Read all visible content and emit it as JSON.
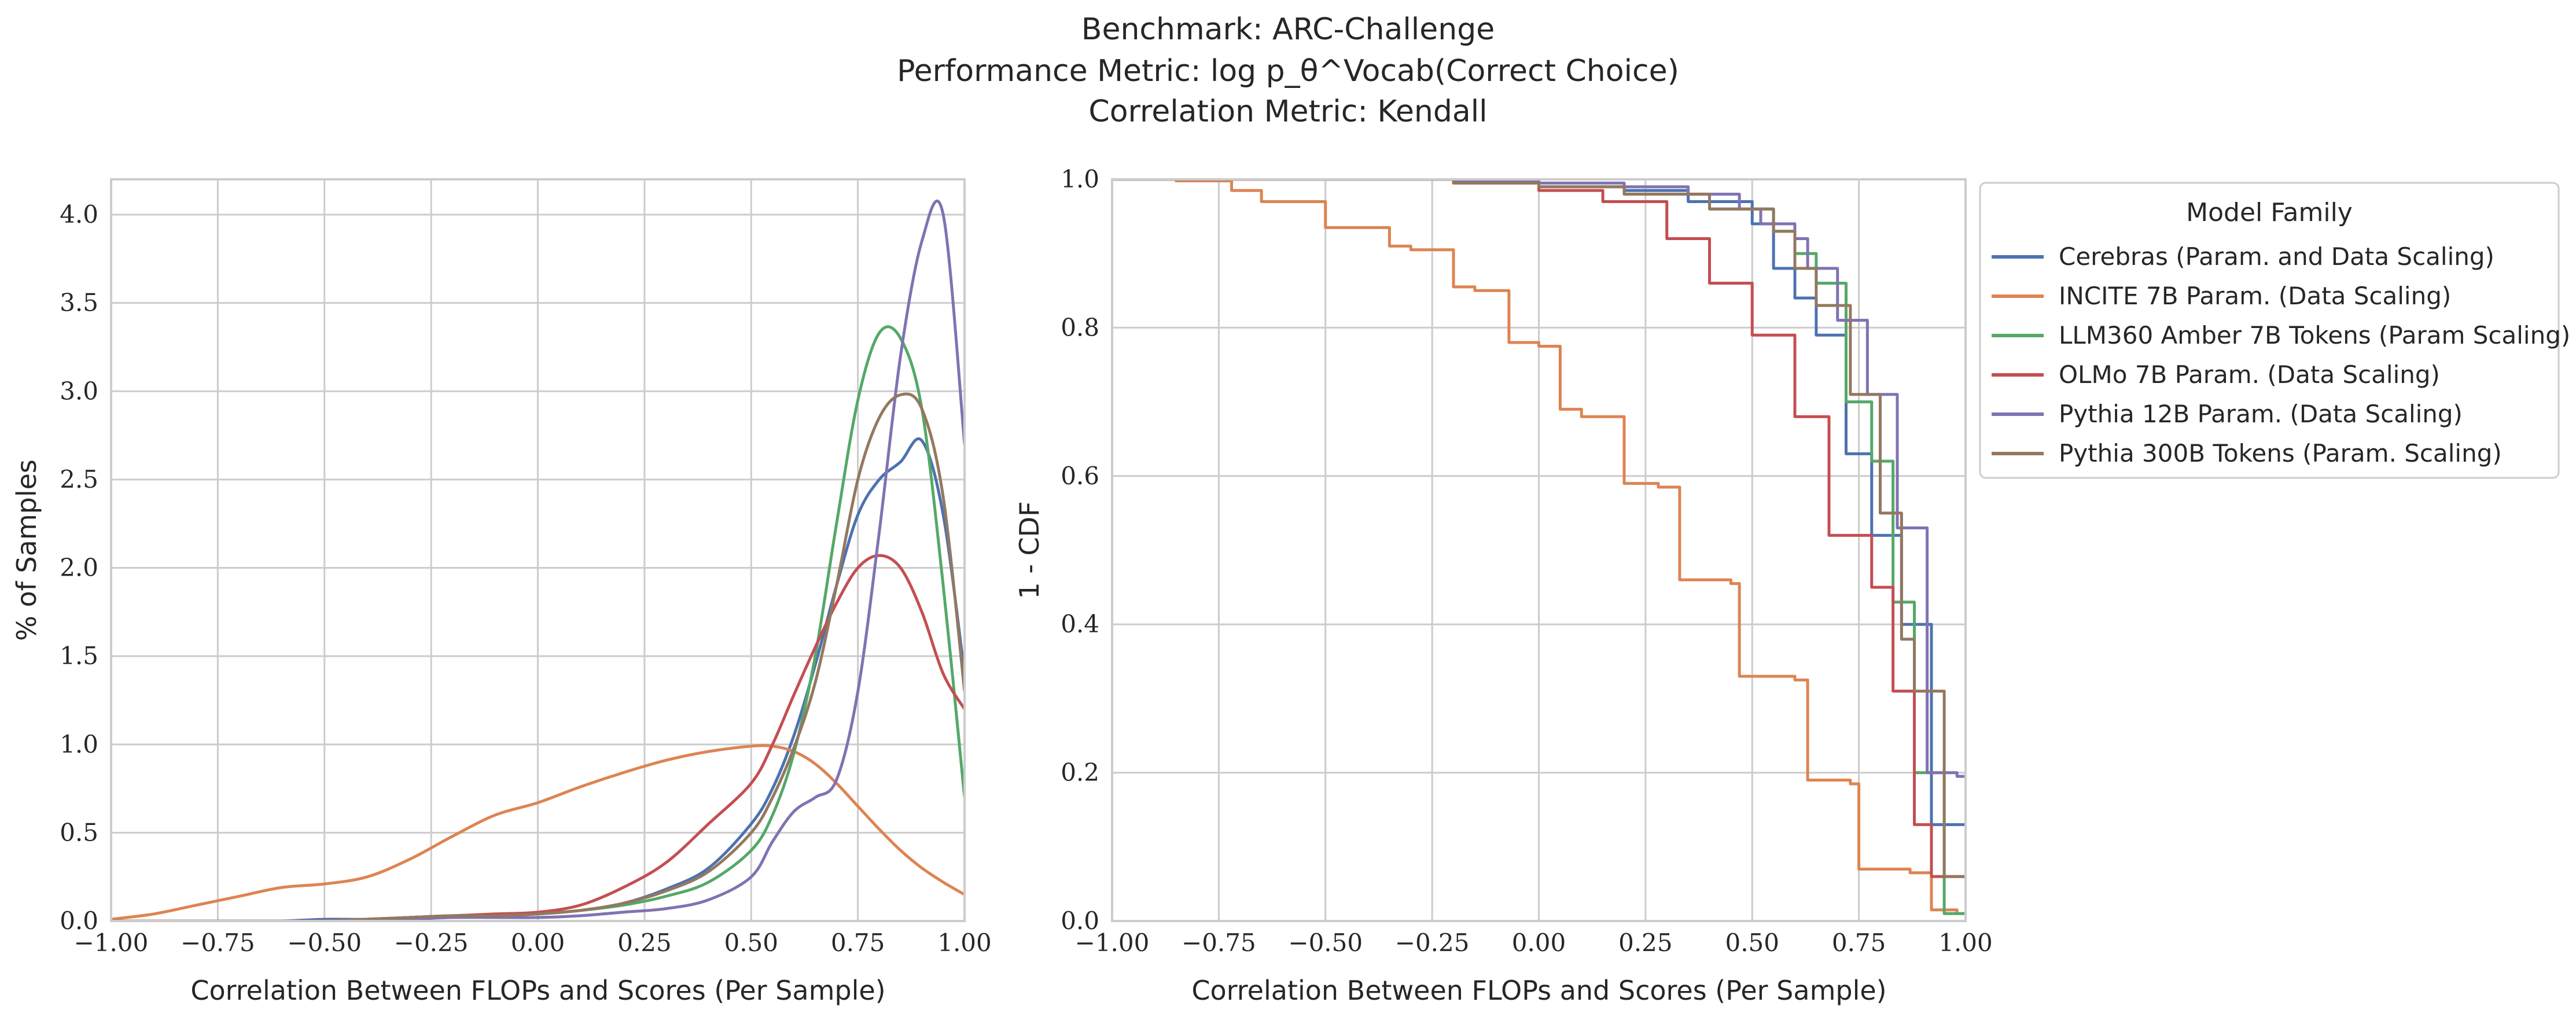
{
  "figure": {
    "title_lines": [
      "Benchmark: ARC-Challenge",
      "Performance Metric: log p_θ^Vocab(Correct Choice)",
      "Correlation Metric: Kendall"
    ]
  },
  "colors": {
    "Cerebras (Param. and Data Scaling)": "#4c72b0",
    "INCITE 7B Param. (Data Scaling)": "#dd8452",
    "LLM360 Amber 7B Tokens (Param Scaling)": "#55a868",
    "OLMo 7B Param. (Data Scaling)": "#c44e52",
    "Pythia 12B Param. (Data Scaling)": "#8172b3",
    "Pythia 300B Tokens (Param. Scaling)": "#937860"
  },
  "chart_data": [
    {
      "type": "line",
      "subtype": "kde",
      "xlabel": "Correlation Between FLOPs and Scores (Per Sample)",
      "ylabel": "% of Samples",
      "xlim": [
        -1.0,
        1.0
      ],
      "ylim": [
        0.0,
        4.2
      ],
      "xticks": [
        "−1.00",
        "−0.75",
        "−0.50",
        "−0.25",
        "0.00",
        "0.25",
        "0.50",
        "0.75",
        "1.00"
      ],
      "yticks": [
        "0.0",
        "0.5",
        "1.0",
        "1.5",
        "2.0",
        "2.5",
        "3.0",
        "3.5",
        "4.0"
      ],
      "grid": true,
      "x": [
        -1.0,
        -0.9,
        -0.8,
        -0.7,
        -0.6,
        -0.5,
        -0.4,
        -0.3,
        -0.2,
        -0.1,
        0.0,
        0.1,
        0.2,
        0.3,
        0.4,
        0.5,
        0.55,
        0.6,
        0.65,
        0.7,
        0.75,
        0.8,
        0.85,
        0.9,
        0.95,
        1.0
      ],
      "series": [
        {
          "name": "Cerebras (Param. and Data Scaling)",
          "values": [
            0,
            0,
            0,
            0,
            0,
            0.01,
            0.01,
            0.02,
            0.03,
            0.03,
            0.04,
            0.06,
            0.1,
            0.18,
            0.3,
            0.55,
            0.75,
            1.05,
            1.45,
            1.9,
            2.3,
            2.5,
            2.6,
            2.72,
            2.3,
            1.4
          ]
        },
        {
          "name": "INCITE 7B Param. (Data Scaling)",
          "values": [
            0.01,
            0.04,
            0.09,
            0.14,
            0.19,
            0.21,
            0.25,
            0.35,
            0.48,
            0.6,
            0.67,
            0.76,
            0.84,
            0.91,
            0.96,
            0.99,
            0.99,
            0.96,
            0.89,
            0.78,
            0.65,
            0.52,
            0.4,
            0.3,
            0.22,
            0.15
          ]
        },
        {
          "name": "LLM360 Amber 7B Tokens (Param Scaling)",
          "values": [
            0,
            0,
            0,
            0,
            0,
            0,
            0.01,
            0.02,
            0.03,
            0.03,
            0.04,
            0.06,
            0.09,
            0.14,
            0.22,
            0.4,
            0.6,
            0.95,
            1.5,
            2.25,
            2.95,
            3.33,
            3.3,
            2.9,
            1.9,
            0.7
          ]
        },
        {
          "name": "OLMo 7B Param. (Data Scaling)",
          "values": [
            0,
            0,
            0,
            0,
            0,
            0,
            0.01,
            0.02,
            0.03,
            0.04,
            0.05,
            0.09,
            0.19,
            0.33,
            0.55,
            0.78,
            1.0,
            1.28,
            1.55,
            1.8,
            2.0,
            2.07,
            2.0,
            1.75,
            1.4,
            1.2
          ]
        },
        {
          "name": "Pythia 12B Param. (Data Scaling)",
          "values": [
            0,
            0,
            0,
            0,
            0,
            0,
            0.01,
            0.01,
            0.02,
            0.02,
            0.02,
            0.03,
            0.05,
            0.07,
            0.12,
            0.25,
            0.45,
            0.62,
            0.7,
            0.8,
            1.3,
            2.2,
            3.2,
            3.85,
            4.0,
            2.7
          ]
        },
        {
          "name": "Pythia 300B Tokens (Param. Scaling)",
          "values": [
            0,
            0,
            0,
            0,
            0,
            0,
            0.01,
            0.02,
            0.03,
            0.03,
            0.04,
            0.06,
            0.1,
            0.17,
            0.28,
            0.5,
            0.7,
            0.98,
            1.35,
            1.9,
            2.5,
            2.85,
            2.98,
            2.9,
            2.4,
            1.3
          ]
        }
      ]
    },
    {
      "type": "line",
      "subtype": "step",
      "xlabel": "Correlation Between FLOPs and Scores (Per Sample)",
      "ylabel": "1 - CDF",
      "xlim": [
        -1.0,
        1.0
      ],
      "ylim": [
        0.0,
        1.0
      ],
      "xticks": [
        "−1.00",
        "−0.75",
        "−0.50",
        "−0.25",
        "0.00",
        "0.25",
        "0.50",
        "0.75",
        "1.00"
      ],
      "yticks": [
        "0.0",
        "0.2",
        "0.4",
        "0.6",
        "0.8",
        "1.0"
      ],
      "grid": true,
      "legend": {
        "title": "Model Family",
        "placement": "outside-right"
      },
      "series": [
        {
          "name": "Cerebras (Param. and Data Scaling)",
          "x": [
            -1.0,
            -0.2,
            0.0,
            0.2,
            0.35,
            0.5,
            0.55,
            0.6,
            0.65,
            0.72,
            0.78,
            0.85,
            0.92,
            1.0
          ],
          "values": [
            1.0,
            0.995,
            0.99,
            0.985,
            0.97,
            0.94,
            0.88,
            0.84,
            0.79,
            0.63,
            0.52,
            0.4,
            0.13,
            0.13
          ]
        },
        {
          "name": "INCITE 7B Param. (Data Scaling)",
          "x": [
            -1.0,
            -0.85,
            -0.72,
            -0.65,
            -0.5,
            -0.35,
            -0.3,
            -0.2,
            -0.15,
            -0.07,
            0.0,
            0.05,
            0.1,
            0.2,
            0.28,
            0.33,
            0.45,
            0.47,
            0.6,
            0.63,
            0.73,
            0.75,
            0.87,
            0.92,
            0.98,
            1.0
          ],
          "values": [
            1.0,
            0.998,
            0.985,
            0.97,
            0.935,
            0.91,
            0.905,
            0.855,
            0.85,
            0.78,
            0.775,
            0.69,
            0.68,
            0.59,
            0.585,
            0.46,
            0.455,
            0.33,
            0.325,
            0.19,
            0.185,
            0.07,
            0.065,
            0.015,
            0.01,
            0.01
          ]
        },
        {
          "name": "LLM360 Amber 7B Tokens (Param Scaling)",
          "x": [
            -1.0,
            -0.2,
            0.0,
            0.2,
            0.4,
            0.55,
            0.6,
            0.65,
            0.72,
            0.78,
            0.83,
            0.88,
            0.95,
            1.0
          ],
          "values": [
            1.0,
            0.995,
            0.99,
            0.98,
            0.96,
            0.93,
            0.9,
            0.86,
            0.7,
            0.62,
            0.43,
            0.2,
            0.01,
            0.01
          ]
        },
        {
          "name": "OLMo 7B Param. (Data Scaling)",
          "x": [
            -1.0,
            -0.2,
            0.0,
            0.15,
            0.3,
            0.4,
            0.5,
            0.6,
            0.68,
            0.78,
            0.83,
            0.88,
            0.92,
            1.0
          ],
          "values": [
            1.0,
            0.995,
            0.985,
            0.97,
            0.92,
            0.86,
            0.79,
            0.68,
            0.52,
            0.45,
            0.31,
            0.13,
            0.06,
            0.06
          ]
        },
        {
          "name": "Pythia 12B Param. (Data Scaling)",
          "x": [
            -1.0,
            -0.2,
            0.0,
            0.2,
            0.35,
            0.47,
            0.52,
            0.6,
            0.63,
            0.7,
            0.77,
            0.84,
            0.91,
            0.98,
            1.0
          ],
          "values": [
            1.0,
            0.998,
            0.995,
            0.99,
            0.98,
            0.96,
            0.94,
            0.92,
            0.88,
            0.81,
            0.71,
            0.53,
            0.2,
            0.195,
            0.195
          ]
        },
        {
          "name": "Pythia 300B Tokens (Param. Scaling)",
          "x": [
            -1.0,
            -0.2,
            0.0,
            0.2,
            0.4,
            0.55,
            0.6,
            0.65,
            0.73,
            0.8,
            0.85,
            0.88,
            0.95,
            1.0
          ],
          "values": [
            1.0,
            0.995,
            0.99,
            0.98,
            0.96,
            0.93,
            0.88,
            0.83,
            0.71,
            0.55,
            0.38,
            0.31,
            0.06,
            0.06
          ]
        }
      ]
    }
  ]
}
